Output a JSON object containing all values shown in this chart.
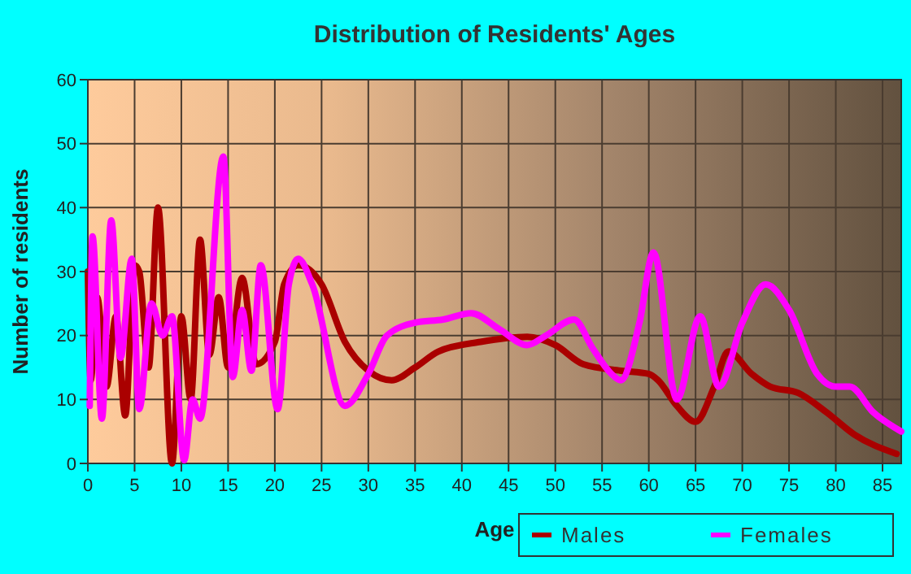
{
  "chart_data": {
    "type": "line",
    "title": "Distribution of Residents' Ages",
    "xlabel": "Age",
    "ylabel": "Number of residents",
    "xlim": [
      0,
      87
    ],
    "ylim": [
      0,
      60
    ],
    "xticks": [
      0,
      5,
      10,
      15,
      20,
      25,
      30,
      35,
      40,
      45,
      50,
      55,
      60,
      65,
      70,
      75,
      80,
      85
    ],
    "yticks": [
      0,
      10,
      20,
      30,
      40,
      50,
      60
    ],
    "grid": true,
    "legend": "bottom",
    "marker": "none",
    "line_style": "solid",
    "series": [
      {
        "name": "Males",
        "color": "#aa0000",
        "x": [
          0,
          0.3,
          1,
          2,
          3,
          4,
          5,
          5.5,
          6.5,
          7.5,
          9,
          10,
          11,
          12,
          13,
          14,
          15,
          16.5,
          18,
          20,
          21,
          22.5,
          25,
          27.5,
          30,
          32.5,
          35,
          37.5,
          42,
          47,
          50,
          53,
          57,
          60,
          61,
          63,
          65,
          67,
          68.5,
          71,
          73,
          76,
          79,
          82,
          86.5
        ],
        "values": [
          30,
          13,
          26,
          12,
          23,
          7.5,
          31,
          30,
          15,
          40,
          0,
          23,
          10,
          35,
          17,
          26,
          15,
          29,
          15.5,
          19,
          28,
          31,
          28,
          19,
          14.5,
          13,
          15,
          17.5,
          19,
          19.8,
          18.5,
          15.5,
          14.5,
          14,
          13,
          9,
          6.5,
          12,
          17.5,
          14,
          12,
          11,
          8,
          4.5,
          1.5
        ]
      },
      {
        "name": "Females",
        "color": "#ff00ff",
        "x": [
          0.2,
          0.5,
          1.5,
          2.5,
          3.5,
          4.7,
          5.5,
          6.8,
          8,
          9,
          10.3,
          11.2,
          12,
          14.5,
          15.5,
          16.5,
          17.5,
          18.5,
          20.3,
          21.5,
          22.5,
          24,
          27.5,
          30,
          32,
          35,
          38,
          41,
          44,
          47,
          49,
          52,
          54,
          56,
          57,
          59,
          60.5,
          63,
          65.5,
          67.5,
          70,
          72.5,
          75,
          78,
          80,
          81.5,
          84,
          87
        ],
        "values": [
          9,
          35.5,
          7,
          38,
          16.5,
          32,
          8.5,
          25,
          20,
          23,
          0.5,
          10,
          7,
          48,
          13.5,
          24,
          14.5,
          31,
          8.5,
          28,
          32,
          28,
          9,
          14,
          20,
          22,
          22.5,
          23.5,
          21,
          18.5,
          20,
          22.5,
          18,
          14,
          13,
          22,
          33,
          10,
          23,
          12,
          22,
          28,
          24,
          14,
          12,
          12,
          8,
          5
        ]
      }
    ]
  }
}
